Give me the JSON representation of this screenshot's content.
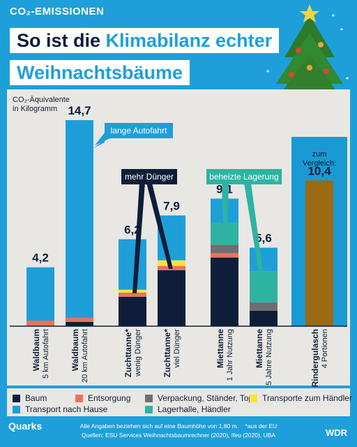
{
  "header": {
    "tag": "CO₂-EMISSIONEN",
    "title_line1_a": "So ist die ",
    "title_line1_b": "Klimabilanz echter",
    "title_line2": "Weihnachtsbäume"
  },
  "colors": {
    "background": "#1e9fd9",
    "panel": "#e9e7e3",
    "baum": "#0f1e38",
    "entsorgung": "#e9725f",
    "verpackung": "#6f6f72",
    "transporte_haendler": "#f5e63b",
    "transport_hause": "#1e9fd9",
    "lagerhalle": "#2eb3a3",
    "rindergulasch": "#9b6a12"
  },
  "chart_data": {
    "type": "bar",
    "stacked": true,
    "ylabel": "CO₂-Äquivalente\nin Kilogramm",
    "categories": [
      {
        "name": "Waldbaum",
        "sub": "5 km Autofahrt"
      },
      {
        "name": "Waldbaum",
        "sub": "20 km Autofahrt"
      },
      {
        "name": "Zuchttanne*",
        "sub": "wenig Dünger"
      },
      {
        "name": "Zuchttanne*",
        "sub": "viel Dünger"
      },
      {
        "name": "Miettanne",
        "sub": "1 Jahr Nutzung"
      },
      {
        "name": "Miettanne",
        "sub": "5 Jahre Nutzung"
      },
      {
        "name": "Rindergulasch",
        "sub": "4 Portionen"
      }
    ],
    "totals": [
      "4,2",
      "14,7",
      "6,2",
      "7,9",
      "9,1",
      "5,6",
      "10,4"
    ],
    "series": [
      {
        "key": "baum",
        "name": "Baum",
        "values": [
          0,
          0.3,
          2.1,
          4.0,
          4.9,
          1.1,
          0
        ]
      },
      {
        "key": "entsorgung",
        "name": "Entsorgung",
        "values": [
          0.4,
          0.3,
          0.3,
          0.3,
          0.3,
          0,
          0
        ]
      },
      {
        "key": "verpackung",
        "name": "Verpackung, Ständer, Topf",
        "values": [
          0,
          0,
          0,
          0,
          0.6,
          0.6,
          0
        ]
      },
      {
        "key": "transporte_haendler",
        "name": "Transporte zum Händler",
        "values": [
          0,
          0,
          0.2,
          0.4,
          0,
          0,
          0
        ]
      },
      {
        "key": "lagerhalle",
        "name": "Lagerhalle, Händler",
        "values": [
          0,
          0,
          0,
          0,
          1.6,
          2.2,
          0
        ]
      },
      {
        "key": "transport_hause",
        "name": "Transport nach Hause",
        "values": [
          3.8,
          14.1,
          3.6,
          3.2,
          1.7,
          1.7,
          0
        ]
      },
      {
        "key": "rindergulasch",
        "name": "Rindergulasch",
        "values": [
          0,
          0,
          0,
          0,
          0,
          0,
          10.4
        ]
      }
    ],
    "ylim": [
      0,
      16
    ],
    "annotations": {
      "lange_autofahrt": "lange Autofahrt",
      "mehr_duenger": "mehr Dünger",
      "beheizte_lagerung": "beheizte Lagerung",
      "zum_vergleich": "zum\nVergleich:"
    },
    "legend_order": [
      "baum",
      "entsorgung",
      "verpackung",
      "transporte_haendler",
      "transport_hause",
      "lagerhalle"
    ]
  },
  "footer": {
    "logo": "Quarks",
    "note1": "Alle Angaben beziehen sich auf eine Baumhöhe von 1,80 m.",
    "note2": "*aus der EU",
    "note3": "Quellen: ESU Services Weihnachtsbaumrechner (2020), Ifeu (2020), UBA",
    "wdr": "WDR"
  }
}
